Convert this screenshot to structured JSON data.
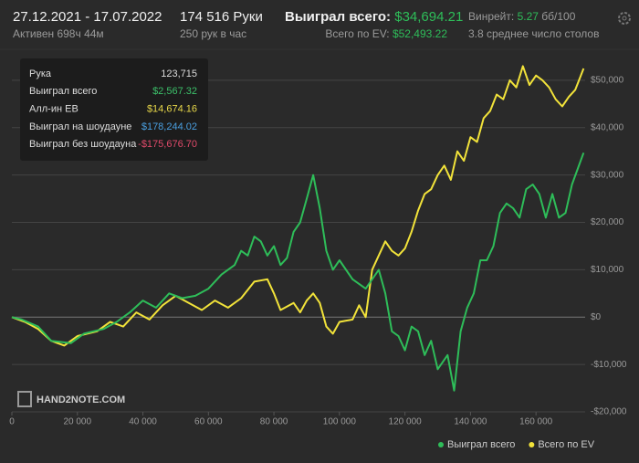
{
  "header": {
    "date_range": "27.12.2021 - 17.07.2022",
    "active": "Активен 698ч 44м",
    "hands": "174 516 Руки",
    "hands_per_hour": "250 рук в час",
    "won_label": "Выиграл всего:",
    "won_value": "$34,694.21",
    "ev_label": "Всего по EV:",
    "ev_value": "$52,493.22",
    "winrate_label": "Винрейт:",
    "winrate_value": "5.27",
    "winrate_unit": "бб/100",
    "tables": "3.8 среднее число столов"
  },
  "tooltip": {
    "rows": [
      {
        "label": "Рука",
        "value": "123,715",
        "color": "#dddddd"
      },
      {
        "label": "Выиграл всего",
        "value": "$2,567.32",
        "color": "#3cc06a"
      },
      {
        "label": "Алл-ин EB",
        "value": "$14,674.16",
        "color": "#e8d84a"
      },
      {
        "label": "Выиграл на шоудауне",
        "value": "$178,244.02",
        "color": "#4a9fe0"
      },
      {
        "label": "Выиграл без шоудауна",
        "value": "-$175,676.70",
        "color": "#e04a6a"
      }
    ]
  },
  "watermark": "HAND2NOTE.COM",
  "chart_data": {
    "type": "line",
    "grid": true,
    "legend": "bottom-right",
    "xlim": [
      0,
      175000
    ],
    "ylim": [
      -20000,
      55000
    ],
    "xticks": [
      {
        "value": 0,
        "label": "0"
      },
      {
        "value": 20000,
        "label": "20 000"
      },
      {
        "value": 40000,
        "label": "40 000"
      },
      {
        "value": 60000,
        "label": "60 000"
      },
      {
        "value": 80000,
        "label": "80 000"
      },
      {
        "value": 100000,
        "label": "100 000"
      },
      {
        "value": 120000,
        "label": "120 000"
      },
      {
        "value": 140000,
        "label": "140 000"
      },
      {
        "value": 160000,
        "label": "160 000"
      }
    ],
    "yticks": [
      {
        "value": -20000,
        "label": "-$20,000"
      },
      {
        "value": -10000,
        "label": "-$10,000"
      },
      {
        "value": 0,
        "label": "$0"
      },
      {
        "value": 10000,
        "label": "$10,000"
      },
      {
        "value": 20000,
        "label": "$20,000"
      },
      {
        "value": 30000,
        "label": "$30,000"
      },
      {
        "value": 40000,
        "label": "$40,000"
      },
      {
        "value": 50000,
        "label": "$50,000"
      }
    ],
    "series": [
      {
        "name": "Выиграл всего",
        "color": "#2ebd59",
        "x": [
          0,
          3000,
          8000,
          12000,
          18000,
          22000,
          28000,
          32000,
          36000,
          40000,
          44000,
          48000,
          52000,
          56000,
          60000,
          64000,
          68000,
          70000,
          72000,
          74000,
          76000,
          78000,
          80000,
          82000,
          84000,
          86000,
          88000,
          90000,
          92000,
          94000,
          96000,
          98000,
          100000,
          104000,
          108000,
          112000,
          114000,
          116000,
          118000,
          120000,
          122000,
          124000,
          126000,
          128000,
          130000,
          133000,
          135000,
          137000,
          139000,
          141000,
          143000,
          145000,
          147000,
          149000,
          151000,
          153000,
          155000,
          157000,
          159000,
          161000,
          163000,
          165000,
          167000,
          169000,
          171000,
          174516
        ],
        "values": [
          0,
          -500,
          -2000,
          -5000,
          -5500,
          -3500,
          -2500,
          -1000,
          1000,
          3500,
          2000,
          5000,
          4000,
          4500,
          6000,
          9000,
          11000,
          14000,
          13000,
          17000,
          16000,
          13000,
          15000,
          11000,
          12500,
          18000,
          20000,
          25000,
          30000,
          23000,
          14000,
          10000,
          12000,
          8000,
          6000,
          10000,
          5000,
          -3000,
          -4000,
          -7000,
          -2000,
          -3000,
          -8000,
          -5000,
          -11000,
          -8000,
          -15500,
          -3000,
          2000,
          5000,
          12000,
          12000,
          15000,
          22000,
          24000,
          23000,
          21000,
          27000,
          28000,
          26000,
          21000,
          26000,
          21000,
          22000,
          28000,
          34694
        ]
      },
      {
        "name": "Всего по EV",
        "color": "#f2e33a",
        "x": [
          0,
          4000,
          8000,
          12000,
          16000,
          20000,
          26000,
          30000,
          34000,
          38000,
          42000,
          46000,
          50000,
          54000,
          58000,
          62000,
          66000,
          70000,
          74000,
          78000,
          80000,
          82000,
          86000,
          88000,
          90000,
          92000,
          94000,
          96000,
          98000,
          100000,
          104000,
          106000,
          108000,
          110000,
          112000,
          114000,
          116000,
          118000,
          120000,
          122000,
          124000,
          126000,
          128000,
          130000,
          132000,
          134000,
          136000,
          138000,
          140000,
          142000,
          144000,
          146000,
          148000,
          150000,
          152000,
          154000,
          156000,
          158000,
          160000,
          162000,
          164000,
          166000,
          168000,
          170000,
          172000,
          174516
        ],
        "values": [
          0,
          -1000,
          -2500,
          -5000,
          -6000,
          -4000,
          -3000,
          -1000,
          -2000,
          1000,
          -500,
          2500,
          4500,
          3000,
          1500,
          3500,
          2000,
          4000,
          7500,
          8000,
          5000,
          1500,
          3000,
          1000,
          3500,
          5000,
          3000,
          -2000,
          -3500,
          -1000,
          -500,
          2500,
          0,
          10000,
          13000,
          16000,
          14000,
          13000,
          14500,
          18000,
          22500,
          26000,
          27000,
          30000,
          32000,
          29000,
          35000,
          33000,
          38000,
          37000,
          42000,
          43500,
          47000,
          46000,
          50000,
          48500,
          53000,
          49000,
          51000,
          50000,
          48500,
          46000,
          44500,
          46500,
          48000,
          52493
        ]
      }
    ]
  }
}
